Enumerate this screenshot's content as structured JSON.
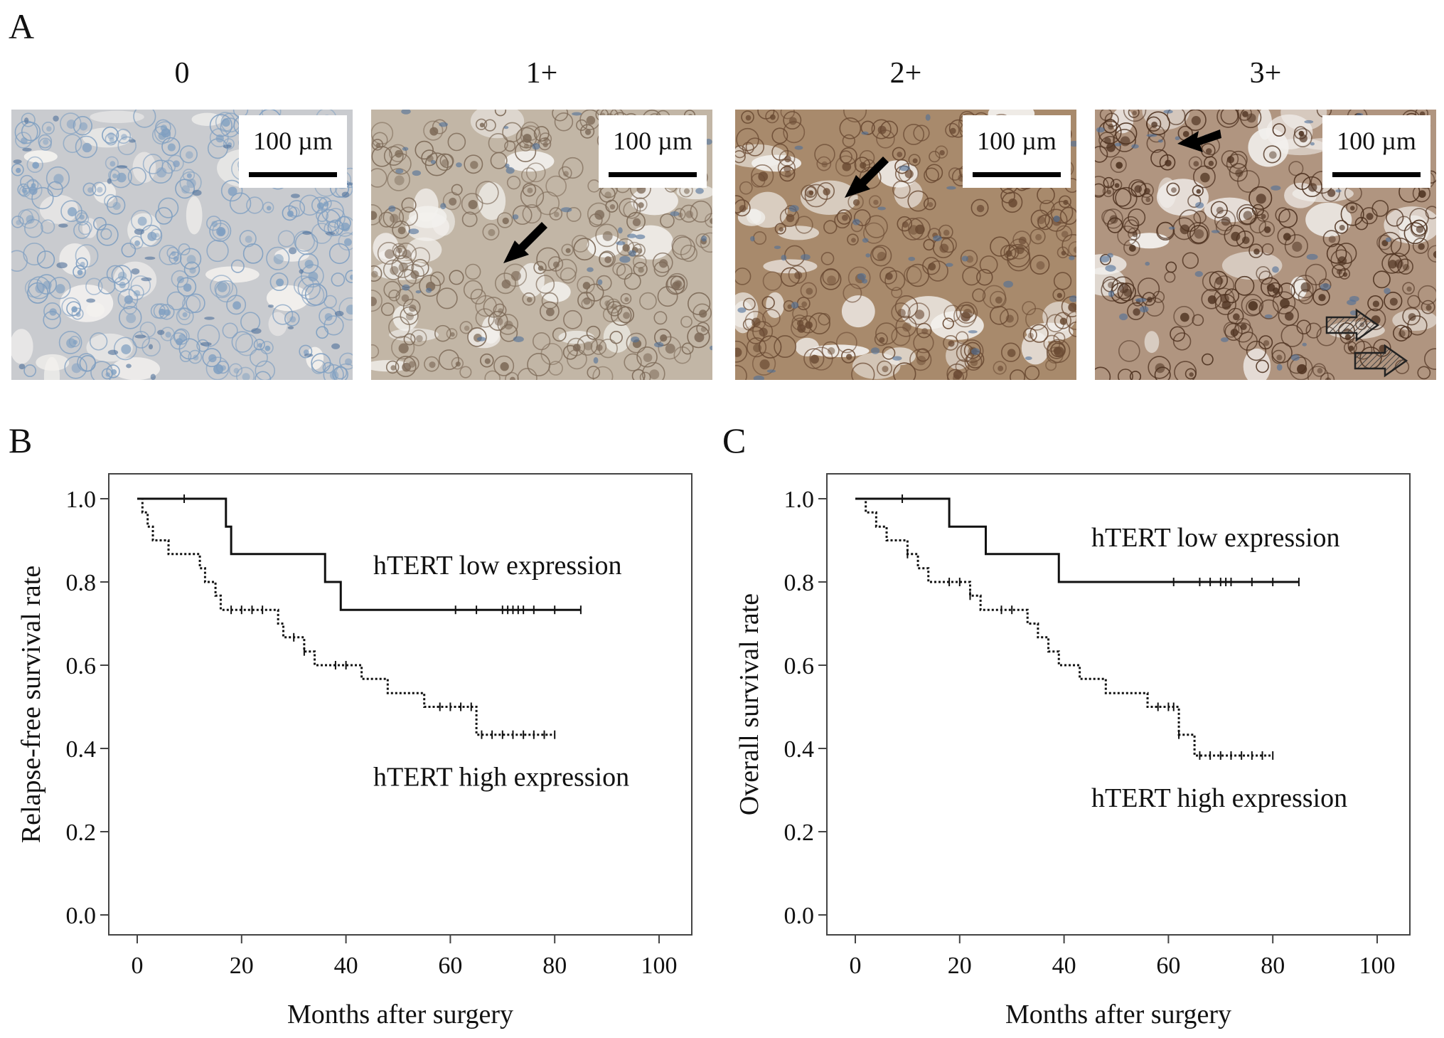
{
  "panel_a": {
    "letter": "A",
    "micrographs": [
      {
        "score": "0",
        "scale_label": "100 µm",
        "stain_color": "#c9cbcf",
        "nuclei_color": "#7f9fc1",
        "arrows": []
      },
      {
        "score": "1+",
        "scale_label": "100 µm",
        "stain_color": "#c2b6a6",
        "nuclei_color": "#7d6a58",
        "arrows": [
          "black"
        ]
      },
      {
        "score": "2+",
        "scale_label": "100 µm",
        "stain_color": "#a88a6c",
        "nuclei_color": "#6a4a33",
        "arrows": [
          "black"
        ]
      },
      {
        "score": "3+",
        "scale_label": "100 µm",
        "stain_color": "#b09580",
        "nuclei_color": "#4e3220",
        "arrows": [
          "black",
          "hatched",
          "hatched"
        ]
      }
    ]
  },
  "chart_data": [
    {
      "panel": "B",
      "type": "line",
      "xlabel": "Months after surgery",
      "ylabel": "Relapse-free survival rate",
      "xlim": [
        0,
        100
      ],
      "ylim": [
        0,
        1
      ],
      "xticks": [
        "0",
        "20",
        "40",
        "60",
        "80",
        "100"
      ],
      "yticks": [
        "0.0",
        "0.2",
        "0.4",
        "0.6",
        "0.8",
        "1.0"
      ],
      "series": [
        {
          "name": "hTERT low expression",
          "style": "solid",
          "steps": [
            [
              0,
              1.0
            ],
            [
              17,
              0.933
            ],
            [
              18,
              0.867
            ],
            [
              36,
              0.8
            ],
            [
              39,
              0.733
            ],
            [
              85,
              0.733
            ]
          ],
          "censored": [
            9,
            61,
            65,
            70,
            71,
            72,
            73,
            74,
            76,
            80,
            85
          ]
        },
        {
          "name": "hTERT high expression",
          "style": "dotted",
          "steps": [
            [
              0,
              1.0
            ],
            [
              1,
              0.967
            ],
            [
              2,
              0.933
            ],
            [
              3,
              0.9
            ],
            [
              6,
              0.867
            ],
            [
              12,
              0.833
            ],
            [
              13,
              0.8
            ],
            [
              15,
              0.767
            ],
            [
              16,
              0.733
            ],
            [
              27,
              0.7
            ],
            [
              28,
              0.667
            ],
            [
              32,
              0.633
            ],
            [
              34,
              0.6
            ],
            [
              43,
              0.567
            ],
            [
              48,
              0.533
            ],
            [
              55,
              0.5
            ],
            [
              65,
              0.433
            ],
            [
              80,
              0.433
            ]
          ],
          "censored": [
            18,
            20,
            22,
            24,
            30,
            32,
            38,
            40,
            58,
            60,
            62,
            64,
            66,
            68,
            70,
            72,
            74,
            76,
            78,
            80
          ]
        }
      ]
    },
    {
      "panel": "C",
      "type": "line",
      "xlabel": "Months after surgery",
      "ylabel": "Overall survival rate",
      "xlim": [
        0,
        100
      ],
      "ylim": [
        0,
        1
      ],
      "xticks": [
        "0",
        "20",
        "40",
        "60",
        "80",
        "100"
      ],
      "yticks": [
        "0.0",
        "0.2",
        "0.4",
        "0.6",
        "0.8",
        "1.0"
      ],
      "series": [
        {
          "name": "hTERT low expression",
          "style": "solid",
          "steps": [
            [
              0,
              1.0
            ],
            [
              18,
              0.933
            ],
            [
              25,
              0.867
            ],
            [
              39,
              0.8
            ],
            [
              85,
              0.8
            ]
          ],
          "censored": [
            9,
            61,
            66,
            68,
            70,
            71,
            72,
            76,
            80,
            85
          ]
        },
        {
          "name": "hTERT high expression",
          "style": "dotted",
          "steps": [
            [
              0,
              1.0
            ],
            [
              2,
              0.967
            ],
            [
              4,
              0.933
            ],
            [
              6,
              0.9
            ],
            [
              10,
              0.867
            ],
            [
              12,
              0.833
            ],
            [
              14,
              0.8
            ],
            [
              22,
              0.767
            ],
            [
              24,
              0.733
            ],
            [
              33,
              0.7
            ],
            [
              35,
              0.667
            ],
            [
              37,
              0.633
            ],
            [
              39,
              0.6
            ],
            [
              43,
              0.567
            ],
            [
              48,
              0.533
            ],
            [
              56,
              0.5
            ],
            [
              62,
              0.433
            ],
            [
              65,
              0.383
            ],
            [
              80,
              0.383
            ]
          ],
          "censored": [
            10,
            18,
            20,
            22,
            28,
            30,
            58,
            60,
            61,
            62,
            66,
            68,
            70,
            72,
            74,
            76,
            78,
            80
          ]
        }
      ]
    }
  ]
}
